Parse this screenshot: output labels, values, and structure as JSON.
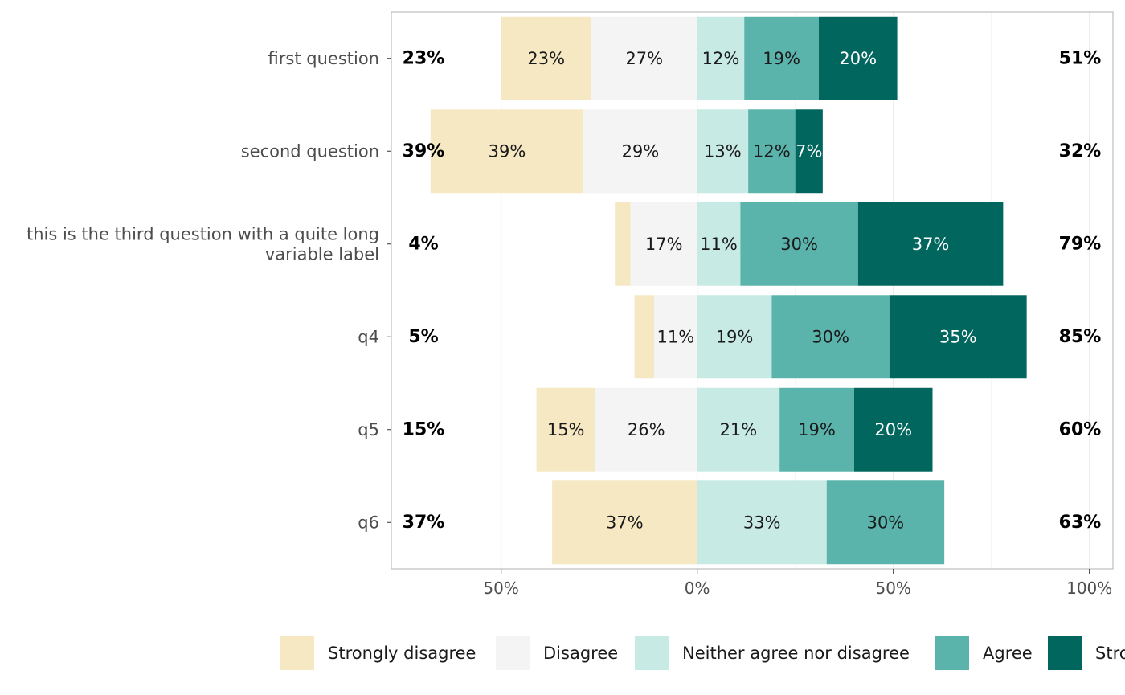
{
  "chart_data": {
    "type": "bar",
    "orientation": "horizontal",
    "stacked": "diverging",
    "categories": [
      "first question",
      "second question",
      "this is the third question with a quite long variable label",
      "q4",
      "q5",
      "q6"
    ],
    "category_label_lines": [
      [
        "first question"
      ],
      [
        "second question"
      ],
      [
        "this is the third question with a quite long",
        "variable label"
      ],
      [
        "q4"
      ],
      [
        "q5"
      ],
      [
        "q6"
      ]
    ],
    "series": [
      {
        "name": "Strongly disagree",
        "color": "#f5e8c3",
        "values": [
          23,
          39,
          4,
          5,
          15,
          37
        ],
        "labels": [
          "23%",
          "39%",
          "",
          "",
          "15%",
          "37%"
        ]
      },
      {
        "name": "Disagree",
        "color": "#f4f4f4",
        "values": [
          27,
          29,
          17,
          11,
          26,
          0
        ],
        "labels": [
          "27%",
          "29%",
          "17%",
          "11%",
          "26%",
          ""
        ]
      },
      {
        "name": "Neither agree nor disagree",
        "color": "#c7eae5",
        "values": [
          12,
          13,
          11,
          19,
          21,
          33
        ],
        "labels": [
          "12%",
          "13%",
          "11%",
          "19%",
          "21%",
          "33%"
        ]
      },
      {
        "name": "Agree",
        "color": "#5ab4ac",
        "values": [
          19,
          12,
          30,
          30,
          19,
          30
        ],
        "labels": [
          "19%",
          "12%",
          "30%",
          "30%",
          "19%",
          "30%"
        ]
      },
      {
        "name": "Strongly agree",
        "color": "#01665e",
        "values": [
          20,
          7,
          37,
          35,
          20,
          0
        ],
        "labels": [
          "20%",
          "7%",
          "37%",
          "35%",
          "20%",
          ""
        ]
      }
    ],
    "left_totals": [
      "23%",
      "39%",
      "4%",
      "5%",
      "15%",
      "37%"
    ],
    "right_totals": [
      "51%",
      "32%",
      "79%",
      "85%",
      "60%",
      "63%"
    ],
    "x_ticks": [
      -50,
      0,
      50,
      100
    ],
    "x_tick_labels": [
      "50%",
      "0%",
      "50%",
      "100%"
    ],
    "xlim": [
      -78,
      106
    ],
    "title": "",
    "xlabel": "",
    "ylabel": "",
    "grid": true,
    "legend_position": "bottom"
  }
}
